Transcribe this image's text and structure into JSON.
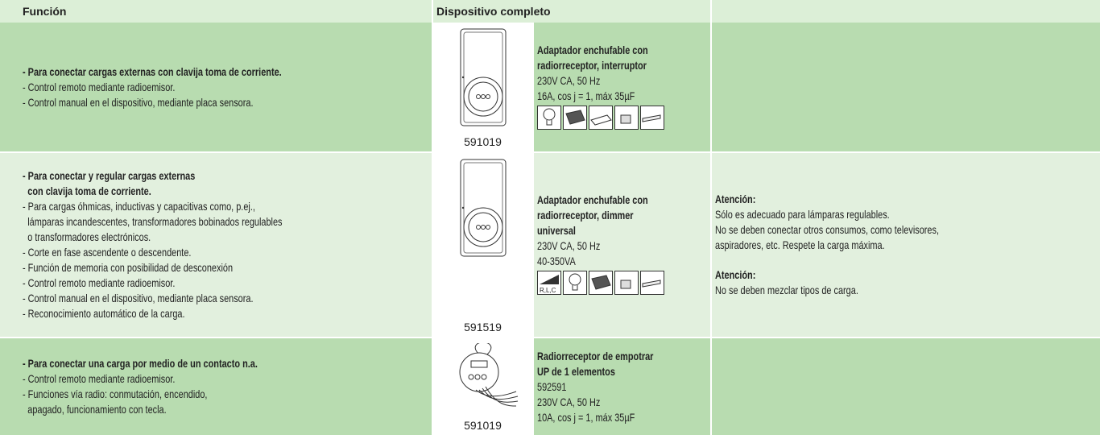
{
  "header": {
    "function": "Función",
    "device": "Dispositivo completo"
  },
  "rows": [
    {
      "function": {
        "title": [
          [
            "- Para conectar cargas externas con clavija toma de corriente."
          ]
        ],
        "items": [
          [
            "- Control remoto mediante radioemisor."
          ],
          [
            "- Control manual en el dispositivo, mediante placa sensora."
          ]
        ]
      },
      "device": {
        "code": "591019",
        "name": [
          "Adaptador enchufable con",
          "radiorreceptor, interruptor"
        ],
        "specs": [
          "230V CA, 50 Hz",
          "16A, cos j = 1, máx 35µF"
        ]
      },
      "notes": []
    },
    {
      "function": {
        "title": [
          [
            "- Para conectar y regular cargas externas",
            "con clavija toma de corriente."
          ]
        ],
        "items": [
          [
            "- Para cargas óhmicas, inductivas y capacitivas como, p.ej.,",
            "lámparas incandescentes, transformadores bobinados regulables",
            "o transformadores electrónicos."
          ],
          [
            "- Corte en fase ascendente o descendente."
          ],
          [
            "- Función de memoria con posibilidad de desconexión"
          ],
          [
            "- Control remoto mediante radioemisor."
          ],
          [
            "- Control manual en el dispositivo, mediante placa sensora."
          ],
          [
            "- Reconocimiento automático de la carga."
          ]
        ]
      },
      "device": {
        "code": "591519",
        "name": [
          "Adaptador enchufable con",
          "radiorreceptor, dimmer",
          "universal"
        ],
        "specs": [
          "230V CA, 50 Hz",
          "40-350VA"
        ],
        "icon_label": "R,L,C"
      },
      "notes": [
        {
          "heading": "Atención:",
          "lines": [
            "Sólo es adecuado para lámparas regulables.",
            "No se deben conectar otros consumos, como televisores,",
            "aspiradores, etc. Respete la carga máxima."
          ]
        },
        {
          "heading": "Atención:",
          "lines": [
            "No se deben mezclar tipos de carga."
          ]
        }
      ]
    },
    {
      "function": {
        "title": [
          [
            "- Para conectar una carga por medio de un contacto n.a."
          ]
        ],
        "items": [
          [
            "- Control remoto mediante radioemisor."
          ],
          [
            "- Funciones vía radio: conmutación, encendido,",
            "apagado, funcionamiento con tecla."
          ]
        ]
      },
      "device": {
        "code": "591019",
        "name": [
          "Radiorreceptor de empotrar",
          "UP de 1 elementos"
        ],
        "specs": [
          "592591",
          "230V CA, 50 Hz",
          "10A, cos j = 1, máx 35µF"
        ]
      },
      "notes": []
    }
  ]
}
